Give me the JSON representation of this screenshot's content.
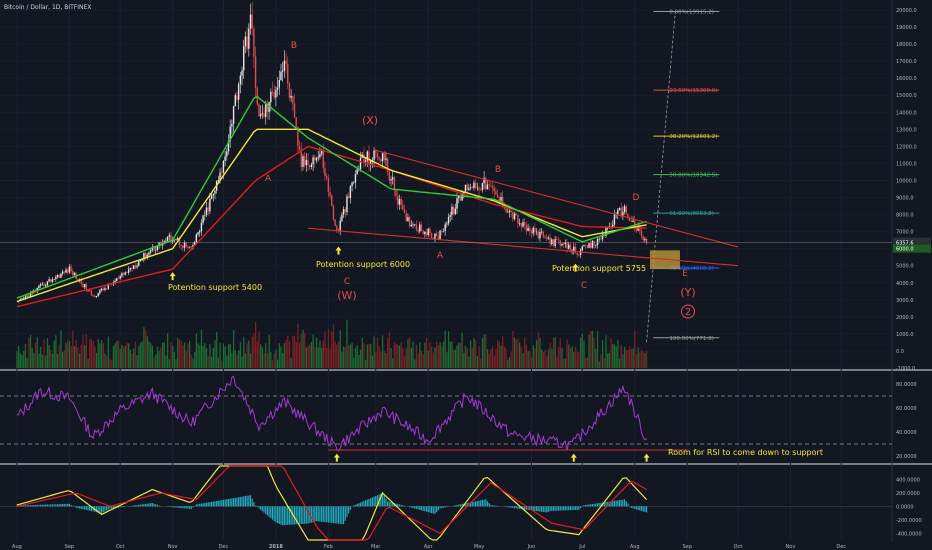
{
  "chart_title": "Bitcoin / Dollar, 1D, BITFINEX",
  "colors": {
    "background": "#131722",
    "up_candle": "#e6e6e6",
    "down_candle": "#e74b4b",
    "ema_red": "#e31b1b",
    "ema_yellow": "#f2e93a",
    "ema_green": "#2fcc38",
    "rsi": "#a33ad2",
    "macd_hist": "#26c6da",
    "fib_lines": "#999999",
    "annotation": "#f5e735",
    "wave_label": "#e74b4b"
  },
  "chart_data": [
    {
      "type": "candlestick",
      "title": "Bitcoin / Dollar, 1D, BITFINEX",
      "x_tick_labels": [
        "Aug",
        "Sep",
        "Oct",
        "Nov",
        "Dec",
        "2018",
        "Feb",
        "Mar",
        "Apr",
        "May",
        "Jun",
        "Jul",
        "Aug",
        "Sep",
        "Oct",
        "Nov",
        "Dec"
      ],
      "y_tick_labels": [
        "20000.0",
        "19000.0",
        "18000.0",
        "17000.0",
        "16000.0",
        "15000.0",
        "14000.0",
        "13000.0",
        "12000.0",
        "11000.0",
        "10000.0",
        "9000.0",
        "8000.0",
        "7000.0",
        "6000.0",
        "5000.0",
        "4000.0",
        "3000.0",
        "2000.0",
        "1000.0",
        "0.0",
        "-1000.0"
      ],
      "ylim": [
        -1000,
        20000
      ],
      "price_points": [
        {
          "date": "2017-08-01",
          "price": 2800
        },
        {
          "date": "2017-08-20",
          "price": 4100
        },
        {
          "date": "2017-09-01",
          "price": 4800
        },
        {
          "date": "2017-09-15",
          "price": 3200
        },
        {
          "date": "2017-10-01",
          "price": 4300
        },
        {
          "date": "2017-10-20",
          "price": 6000
        },
        {
          "date": "2017-11-01",
          "price": 6700
        },
        {
          "date": "2017-11-12",
          "price": 5900
        },
        {
          "date": "2017-11-30",
          "price": 10500
        },
        {
          "date": "2017-12-17",
          "price": 19500
        },
        {
          "date": "2017-12-22",
          "price": 13500
        },
        {
          "date": "2017-12-28",
          "price": 14500
        },
        {
          "date": "2018-01-06",
          "price": 17000
        },
        {
          "date": "2018-01-16",
          "price": 11000
        },
        {
          "date": "2018-01-28",
          "price": 11500
        },
        {
          "date": "2018-02-06",
          "price": 6900
        },
        {
          "date": "2018-02-20",
          "price": 11200
        },
        {
          "date": "2018-03-05",
          "price": 11500
        },
        {
          "date": "2018-03-18",
          "price": 7800
        },
        {
          "date": "2018-04-06",
          "price": 6600
        },
        {
          "date": "2018-04-24",
          "price": 9700
        },
        {
          "date": "2018-05-05",
          "price": 9800
        },
        {
          "date": "2018-05-28",
          "price": 7200
        },
        {
          "date": "2018-06-12",
          "price": 6500
        },
        {
          "date": "2018-06-29",
          "price": 5800
        },
        {
          "date": "2018-07-10",
          "price": 6400
        },
        {
          "date": "2018-07-25",
          "price": 8400
        },
        {
          "date": "2018-08-08",
          "price": 6300
        }
      ],
      "moving_averages": [
        {
          "name": "",
          "color": "#e31b1b",
          "points": [
            {
              "date": "2017-08-01",
              "price": 2600
            },
            {
              "date": "2017-11-01",
              "price": 4800
            },
            {
              "date": "2017-12-20",
              "price": 10000
            },
            {
              "date": "2018-01-20",
              "price": 12000
            },
            {
              "date": "2018-03-10",
              "price": 10600
            },
            {
              "date": "2018-05-10",
              "price": 8600
            },
            {
              "date": "2018-07-01",
              "price": 7300
            },
            {
              "date": "2018-08-08",
              "price": 7200
            }
          ]
        },
        {
          "name": "",
          "color": "#f2e93a",
          "points": [
            {
              "date": "2017-08-01",
              "price": 2900
            },
            {
              "date": "2017-11-01",
              "price": 6000
            },
            {
              "date": "2017-12-20",
              "price": 13000
            },
            {
              "date": "2018-01-20",
              "price": 13000
            },
            {
              "date": "2018-03-10",
              "price": 10600
            },
            {
              "date": "2018-05-10",
              "price": 8800
            },
            {
              "date": "2018-07-01",
              "price": 6700
            },
            {
              "date": "2018-08-08",
              "price": 7400
            }
          ]
        },
        {
          "name": "",
          "color": "#2fcc38",
          "points": [
            {
              "date": "2017-08-01",
              "price": 3100
            },
            {
              "date": "2017-11-01",
              "price": 6500
            },
            {
              "date": "2017-12-20",
              "price": 15000
            },
            {
              "date": "2018-01-20",
              "price": 12500
            },
            {
              "date": "2018-03-10",
              "price": 9500
            },
            {
              "date": "2018-05-10",
              "price": 8900
            },
            {
              "date": "2018-07-01",
              "price": 6400
            },
            {
              "date": "2018-08-08",
              "price": 7600
            }
          ]
        }
      ],
      "last_price_label": "6357.6",
      "secondary_price_label": "6000.0",
      "fib_levels": [
        {
          "label": "0.00%(19915.2)",
          "value": 19915.2,
          "color": "#999999"
        },
        {
          "label": "23.60%(15300.0)",
          "value": 15300.0,
          "color": "#e74b4b"
        },
        {
          "label": "38.20%(12601.2)",
          "value": 12601.2,
          "color": "#c9c935"
        },
        {
          "label": "50.00%(10342.5)",
          "value": 10342.5,
          "color": "#3fbf4f"
        },
        {
          "label": "61.80%(8083.8)",
          "value": 8083.8,
          "color": "#26a69a"
        },
        {
          "label": "78.60%(4868.8)",
          "value": 4868.8,
          "color": "#2962ff"
        },
        {
          "label": "100.00%(771.8)",
          "value": 771.8,
          "color": "#999999"
        }
      ],
      "annotations": [
        {
          "text": "Potention support 5400",
          "color": "#f5e735"
        },
        {
          "text": "Potention support 6000",
          "color": "#f5e735"
        },
        {
          "text": "Potention support 5755",
          "color": "#f5e735"
        }
      ],
      "wave_labels": [
        "B",
        "(X)",
        "A",
        "B",
        "C",
        "(W)",
        "A",
        "D",
        "C",
        "E",
        "(Y)",
        "2"
      ]
    },
    {
      "type": "line",
      "title": "RSI",
      "y_tick_labels": [
        "80.0000",
        "60.0000",
        "40.0000",
        "20.0000"
      ],
      "ylim": [
        15,
        90
      ],
      "reference_lines": [
        70,
        30
      ],
      "rsi_points": [
        {
          "date": "2017-08-01",
          "value": 52
        },
        {
          "date": "2017-08-15",
          "value": 74
        },
        {
          "date": "2017-09-01",
          "value": 68
        },
        {
          "date": "2017-09-15",
          "value": 36
        },
        {
          "date": "2017-10-01",
          "value": 58
        },
        {
          "date": "2017-10-20",
          "value": 72
        },
        {
          "date": "2017-11-12",
          "value": 47
        },
        {
          "date": "2017-12-07",
          "value": 86
        },
        {
          "date": "2017-12-22",
          "value": 46
        },
        {
          "date": "2018-01-06",
          "value": 65
        },
        {
          "date": "2018-02-06",
          "value": 27
        },
        {
          "date": "2018-03-05",
          "value": 58
        },
        {
          "date": "2018-04-01",
          "value": 33
        },
        {
          "date": "2018-04-24",
          "value": 70
        },
        {
          "date": "2018-05-20",
          "value": 38
        },
        {
          "date": "2018-06-12",
          "value": 32
        },
        {
          "date": "2018-06-25",
          "value": 29
        },
        {
          "date": "2018-07-26",
          "value": 77
        },
        {
          "date": "2018-08-08",
          "value": 33
        }
      ],
      "annotation": "Room for RSI to come down to support"
    },
    {
      "type": "bar",
      "title": "MACD",
      "y_tick_labels": [
        "400.0000",
        "200.0000",
        "0.0000",
        "-200.0000",
        "-400.0000"
      ],
      "ylim": [
        -500,
        600
      ],
      "macd_points": [
        {
          "date": "2017-08-01",
          "value": 20
        },
        {
          "date": "2017-09-01",
          "value": 240
        },
        {
          "date": "2017-09-20",
          "value": -120
        },
        {
          "date": "2017-10-20",
          "value": 250
        },
        {
          "date": "2017-11-12",
          "value": 50
        },
        {
          "date": "2017-12-17",
          "value": 1200
        },
        {
          "date": "2018-01-01",
          "value": 300
        },
        {
          "date": "2018-01-20",
          "value": -500
        },
        {
          "date": "2018-02-10",
          "value": -1200
        },
        {
          "date": "2018-03-05",
          "value": 200
        },
        {
          "date": "2018-04-05",
          "value": -550
        },
        {
          "date": "2018-05-05",
          "value": 450
        },
        {
          "date": "2018-06-10",
          "value": -350
        },
        {
          "date": "2018-06-29",
          "value": -420
        },
        {
          "date": "2018-07-26",
          "value": 450
        },
        {
          "date": "2018-08-08",
          "value": 100
        }
      ],
      "signal_points": [
        {
          "date": "2017-08-01",
          "value": 0
        },
        {
          "date": "2017-09-05",
          "value": 200
        },
        {
          "date": "2017-09-25",
          "value": 0
        },
        {
          "date": "2017-10-25",
          "value": 200
        },
        {
          "date": "2017-11-15",
          "value": 100
        },
        {
          "date": "2017-12-20",
          "value": 1000
        },
        {
          "date": "2018-01-05",
          "value": 600
        },
        {
          "date": "2018-01-25",
          "value": -300
        },
        {
          "date": "2018-02-15",
          "value": -900
        },
        {
          "date": "2018-03-08",
          "value": 0
        },
        {
          "date": "2018-04-08",
          "value": -400
        },
        {
          "date": "2018-05-08",
          "value": 350
        },
        {
          "date": "2018-06-13",
          "value": -250
        },
        {
          "date": "2018-07-02",
          "value": -350
        },
        {
          "date": "2018-07-30",
          "value": 380
        },
        {
          "date": "2018-08-08",
          "value": 250
        }
      ]
    }
  ]
}
